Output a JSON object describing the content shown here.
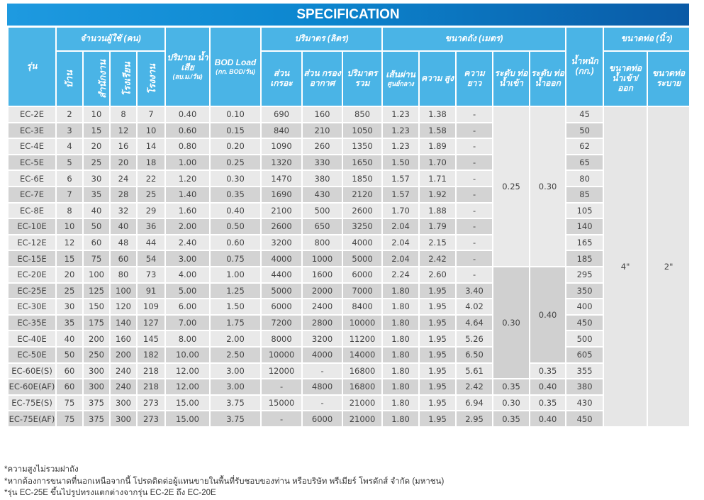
{
  "title": "SPECIFICATION",
  "colors": {
    "header_bg": "#4ab4e6",
    "title_start": "#1e9ae0",
    "title_end": "#0a5aa6",
    "row_light": "#e9e9e9",
    "row_dark": "#d3d3d3"
  },
  "headers": {
    "model": "รุ่น",
    "users_group": "จำนวนผู้ใช้ (คน)",
    "house": "บ้าน",
    "office": "สำนักงาน",
    "school": "โรงเรียน",
    "factory": "โรงงาน",
    "wastewater": "ปริมาณ น้ำเสีย",
    "wastewater_unit": "(ลบ.ม./วัน)",
    "bod": "BOD Load",
    "bod_unit": "(กก. BOD/วัน)",
    "volume_group": "ปริมาตร (ลิตร)",
    "septic": "ส่วน เกรอะ",
    "filter": "ส่วน กรอง อากาศ",
    "total": "ปริมาตร รวม",
    "size_group": "ขนาดถัง (เมตร)",
    "diameter": "เส้นผ่าน",
    "diameter_sub": "ศูนย์กลาง",
    "height": "ความ สูง",
    "length": "ความ ยาว",
    "inlet_level": "ระดับ ท่อ น้ำเข้า",
    "outlet_level": "ระดับ ท่อ น้ำออก",
    "weight": "น้ำหนัก (กก.)",
    "pipe_group": "ขนาดท่อ (นิ้ว)",
    "pipe_inout": "ขนาดท่อ น้ำเข้า/ ออก",
    "pipe_drain": "ขนาดท่อ ระบาย"
  },
  "rows": [
    [
      "EC-2E",
      "2",
      "10",
      "8",
      "7",
      "0.40",
      "0.10",
      "690",
      "160",
      "850",
      "1.23",
      "1.38",
      "-",
      "45"
    ],
    [
      "EC-3E",
      "3",
      "15",
      "12",
      "10",
      "0.60",
      "0.15",
      "840",
      "210",
      "1050",
      "1.23",
      "1.58",
      "-",
      "50"
    ],
    [
      "EC-4E",
      "4",
      "20",
      "16",
      "14",
      "0.80",
      "0.20",
      "1090",
      "260",
      "1350",
      "1.23",
      "1.89",
      "-",
      "62"
    ],
    [
      "EC-5E",
      "5",
      "25",
      "20",
      "18",
      "1.00",
      "0.25",
      "1320",
      "330",
      "1650",
      "1.50",
      "1.70",
      "-",
      "65"
    ],
    [
      "EC-6E",
      "6",
      "30",
      "24",
      "22",
      "1.20",
      "0.30",
      "1470",
      "380",
      "1850",
      "1.57",
      "1.71",
      "-",
      "80"
    ],
    [
      "EC-7E",
      "7",
      "35",
      "28",
      "25",
      "1.40",
      "0.35",
      "1690",
      "430",
      "2120",
      "1.57",
      "1.92",
      "-",
      "85"
    ],
    [
      "EC-8E",
      "8",
      "40",
      "32",
      "29",
      "1.60",
      "0.40",
      "2100",
      "500",
      "2600",
      "1.70",
      "1.88",
      "-",
      "105"
    ],
    [
      "EC-10E",
      "10",
      "50",
      "40",
      "36",
      "2.00",
      "0.50",
      "2600",
      "650",
      "3250",
      "2.04",
      "1.79",
      "-",
      "140"
    ],
    [
      "EC-12E",
      "12",
      "60",
      "48",
      "44",
      "2.40",
      "0.60",
      "3200",
      "800",
      "4000",
      "2.04",
      "2.15",
      "-",
      "165"
    ],
    [
      "EC-15E",
      "15",
      "75",
      "60",
      "54",
      "3.00",
      "0.75",
      "4000",
      "1000",
      "5000",
      "2.04",
      "2.42",
      "-",
      "185"
    ],
    [
      "EC-20E",
      "20",
      "100",
      "80",
      "73",
      "4.00",
      "1.00",
      "4400",
      "1600",
      "6000",
      "2.24",
      "2.60",
      "-",
      "295"
    ],
    [
      "EC-25E",
      "25",
      "125",
      "100",
      "91",
      "5.00",
      "1.25",
      "5000",
      "2000",
      "7000",
      "1.80",
      "1.95",
      "3.40",
      "350"
    ],
    [
      "EC-30E",
      "30",
      "150",
      "120",
      "109",
      "6.00",
      "1.50",
      "6000",
      "2400",
      "8400",
      "1.80",
      "1.95",
      "4.02",
      "400"
    ],
    [
      "EC-35E",
      "35",
      "175",
      "140",
      "127",
      "7.00",
      "1.75",
      "7200",
      "2800",
      "10000",
      "1.80",
      "1.95",
      "4.64",
      "450"
    ],
    [
      "EC-40E",
      "40",
      "200",
      "160",
      "145",
      "8.00",
      "2.00",
      "8000",
      "3200",
      "11200",
      "1.80",
      "1.95",
      "5.26",
      "500"
    ],
    [
      "EC-50E",
      "50",
      "250",
      "200",
      "182",
      "10.00",
      "2.50",
      "10000",
      "4000",
      "14000",
      "1.80",
      "1.95",
      "6.50",
      "605"
    ],
    [
      "EC-60E(S)",
      "60",
      "300",
      "240",
      "218",
      "12.00",
      "3.00",
      "12000",
      "-",
      "16800",
      "1.80",
      "1.95",
      "5.61",
      "355"
    ],
    [
      "EC-60E(AF)",
      "60",
      "300",
      "240",
      "218",
      "12.00",
      "3.00",
      "-",
      "4800",
      "16800",
      "1.80",
      "1.95",
      "2.42",
      "380"
    ],
    [
      "EC-75E(S)",
      "75",
      "375",
      "300",
      "273",
      "15.00",
      "3.75",
      "15000",
      "-",
      "21000",
      "1.80",
      "1.95",
      "6.94",
      "430"
    ],
    [
      "EC-75E(AF)",
      "75",
      "375",
      "300",
      "273",
      "15.00",
      "3.75",
      "-",
      "6000",
      "21000",
      "1.80",
      "1.95",
      "2.95",
      "450"
    ]
  ],
  "inlet_level_blocks": [
    {
      "value": "0.25",
      "rows": 10,
      "tone": "light"
    },
    {
      "value": "0.30",
      "rows": 7,
      "tone": "dark"
    },
    {
      "value": "0.35",
      "rows": 1
    },
    {
      "value": "0.30",
      "rows": 1
    },
    {
      "value": "0.35",
      "rows": 1
    }
  ],
  "outlet_level_blocks": [
    {
      "value": "0.30",
      "rows": 10,
      "tone": "light"
    },
    {
      "value": "0.40",
      "rows": 6,
      "tone": "dark"
    },
    {
      "value": "0.35",
      "rows": 1
    },
    {
      "value": "0.40",
      "rows": 1
    },
    {
      "value": "0.35",
      "rows": 1
    },
    {
      "value": "0.40",
      "rows": 1
    }
  ],
  "pipe_inout": "4\"",
  "pipe_drain": "2\"",
  "notes": [
    "*ความสูงไม่รวมฝาถัง",
    "*หากต้องการขนาดที่นอกเหนือจากนี้ โปรดติดต่อผู้แทนขายในพื้นที่รับชอบของท่าน หรือบริษัท พรีเมียร์ โพรดักส์ จำกัด (มหาชน)",
    "*รุ่น EC-25E ขึ้นไปรูปทรงแตกต่างจากรุ่น EC-2E ถึง EC-20E"
  ]
}
